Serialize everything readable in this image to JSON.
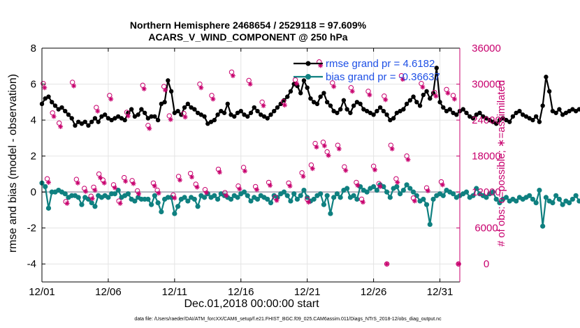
{
  "chart_data": {
    "type": "line",
    "title_line1": "Northern Hemisphere 2468654 / 2529118 = 97.609%",
    "title_line2": "ACARS_V_WIND_COMPONENT @ 250 hPa",
    "xlabel": "Dec.01,2018 00:00:00 start",
    "ylabel_left": "rmse and bias (model - observation)",
    "ylabel_right": "# of obs: o=possible; ∗=assimilated",
    "footer": "data file: /Users/raeder/DAI/ATM_forcXX/CAM6_setup/f.e21.FHIST_BGC.f09_025.CAM6assim.011/Diags_NTrS_2018-12/obs_diag_output.nc",
    "xlim": [
      0,
      31.5
    ],
    "ylim_left": [
      -5,
      8
    ],
    "ylim_right": [
      -3000,
      36000
    ],
    "x_ticks": [
      0,
      5,
      10,
      15,
      20,
      25,
      30
    ],
    "x_tick_labels": [
      "12/01",
      "12/06",
      "12/11",
      "12/16",
      "12/21",
      "12/26",
      "12/31"
    ],
    "y_left_ticks": [
      -4,
      -2,
      0,
      2,
      4,
      6,
      8
    ],
    "y_left_tick_labels": [
      "-4",
      "-2",
      "0",
      "2",
      "4",
      "6",
      "8"
    ],
    "y_right_ticks": [
      0,
      6000,
      12000,
      18000,
      24000,
      30000,
      36000
    ],
    "y_right_tick_labels": [
      "0",
      "6000",
      "12000",
      "18000",
      "24000",
      "30000",
      "36000"
    ],
    "grid": true,
    "legend": [
      {
        "label": "rmse grand pr = 4.6182",
        "color": "#000000"
      },
      {
        "label": "bias grand pr = -0.36637",
        "color": "#0f8080"
      }
    ],
    "series": [
      {
        "name": "rmse",
        "color": "#000000",
        "marker": "asterisk",
        "start": 0,
        "step": 0.25,
        "values": [
          4.9,
          5.2,
          5.3,
          5.0,
          4.8,
          4.6,
          4.7,
          4.5,
          4.3,
          4.1,
          3.7,
          3.9,
          3.8,
          3.9,
          3.7,
          3.9,
          4.1,
          3.9,
          4.2,
          4.3,
          4.1,
          4.0,
          4.1,
          4.2,
          4.1,
          4.0,
          4.4,
          4.6,
          4.2,
          4.3,
          4.6,
          4.4,
          4.1,
          4.2,
          4.2,
          4.0,
          4.9,
          5.0,
          6.2,
          5.6,
          4.4,
          4.5,
          4.3,
          4.7,
          4.9,
          4.7,
          4.6,
          4.4,
          4.3,
          4.2,
          3.8,
          3.9,
          4.0,
          4.3,
          4.5,
          4.4,
          4.9,
          4.3,
          4.2,
          4.4,
          4.5,
          4.3,
          4.2,
          4.4,
          4.7,
          4.5,
          4.3,
          4.2,
          4.1,
          4.3,
          4.5,
          4.7,
          4.9,
          5.1,
          5.3,
          5.6,
          6.0,
          5.9,
          5.5,
          6.2,
          5.8,
          5.2,
          5.0,
          4.9,
          5.3,
          5.5,
          5.0,
          4.8,
          4.5,
          4.4,
          4.6,
          5.1,
          4.6,
          4.4,
          4.8,
          5.0,
          4.9,
          4.6,
          4.5,
          4.4,
          4.3,
          4.5,
          4.7,
          4.5,
          4.3,
          4.0,
          4.1,
          4.4,
          4.5,
          4.6,
          4.9,
          5.1,
          5.3,
          5.0,
          4.8,
          5.4,
          5.6,
          5.2,
          5.5,
          6.9,
          5.0,
          4.7,
          4.5,
          4.6,
          4.4,
          4.3,
          4.5,
          4.6,
          4.4,
          4.2,
          4.1,
          4.3,
          4.4,
          4.2,
          4.1,
          4.0,
          3.9,
          3.8,
          4.0,
          4.1,
          4.0,
          3.9,
          4.2,
          4.4,
          4.5,
          4.3,
          4.2,
          4.1,
          4.0,
          4.2,
          3.9,
          4.8,
          6.4,
          5.6,
          4.5,
          4.4,
          4.6,
          4.3,
          4.4,
          4.5,
          4.6,
          4.5,
          4.6,
          4.4,
          4.3,
          4.2,
          4.1,
          4.5,
          4.6,
          4.7,
          4.8,
          5.0,
          5.1,
          5.2,
          4.6,
          4.7
        ]
      },
      {
        "name": "bias",
        "color": "#0f8080",
        "marker": "dot",
        "start": 0,
        "step": 0.25,
        "values": [
          0.5,
          0.3,
          -0.9,
          0.0,
          0.0,
          0.1,
          0.0,
          -0.1,
          -0.3,
          -0.2,
          -0.2,
          -0.3,
          -0.7,
          -0.3,
          -0.4,
          -0.6,
          -0.8,
          -0.2,
          -0.3,
          -0.2,
          -0.3,
          -0.1,
          -0.1,
          0.1,
          -0.3,
          -0.2,
          -0.1,
          -0.4,
          -0.5,
          -0.3,
          -0.4,
          -0.4,
          -0.4,
          -0.7,
          -0.2,
          -0.6,
          -1.1,
          -0.4,
          -0.3,
          -0.3,
          -1.2,
          -0.8,
          -0.4,
          -0.3,
          -0.5,
          -0.3,
          -0.4,
          -0.8,
          -0.2,
          -0.3,
          -0.1,
          -0.3,
          -0.2,
          -0.4,
          -0.1,
          -0.2,
          -0.3,
          -0.4,
          -0.2,
          -0.3,
          -0.1,
          0.0,
          -0.2,
          -0.5,
          -0.3,
          -0.4,
          -0.2,
          -0.3,
          -0.4,
          -0.6,
          -0.2,
          -0.3,
          -0.1,
          0.0,
          -0.2,
          -0.5,
          -0.1,
          -0.4,
          -0.2,
          0.1,
          -0.3,
          -0.5,
          -0.4,
          -0.2,
          -0.1,
          -0.7,
          -0.2,
          -1.2,
          -0.3,
          -0.1,
          -0.3,
          0.1,
          0.2,
          -0.3,
          -0.2,
          -0.4,
          0.3,
          0.1,
          0.0,
          0.2,
          0.3,
          0.1,
          0.4,
          0.3,
          0.0,
          -0.3,
          0.2,
          0.3,
          -0.1,
          0.1,
          0.4,
          0.2,
          0.0,
          -0.2,
          -0.5,
          -0.4,
          -0.7,
          -1.8,
          -0.4,
          -0.2,
          -0.1,
          -0.2,
          0.1,
          0.0,
          -0.1,
          -0.3,
          -0.2,
          -0.1,
          0.0,
          -0.3,
          -0.2,
          0.2,
          -0.1,
          -0.2,
          -0.3,
          -0.1,
          0.0,
          -0.4,
          -0.6,
          -0.4,
          -0.3,
          -0.5,
          -0.4,
          -0.5,
          -0.3,
          -0.4,
          -0.3,
          -0.2,
          -0.4,
          -0.6,
          0.1,
          -1.9,
          -0.3,
          -0.5,
          -0.6,
          -0.2,
          -0.4,
          -0.7,
          -0.5,
          -0.6,
          -0.4,
          -0.2,
          -0.5,
          -0.6,
          -0.3,
          -0.4,
          -0.5,
          -0.6,
          -0.4,
          -0.3,
          -0.5,
          0.5,
          -0.3,
          -0.5,
          -0.8,
          -0.4,
          -0.3
        ]
      },
      {
        "name": "obs_possible",
        "color": "#c8006e",
        "marker": "circle",
        "axis": "right",
        "points": [
          [
            0.1,
            30100
          ],
          [
            0.4,
            14200
          ],
          [
            0.8,
            25200
          ],
          [
            1.3,
            23500
          ],
          [
            1.8,
            10400
          ],
          [
            2.3,
            30300
          ],
          [
            2.6,
            14100
          ],
          [
            3.2,
            12600
          ],
          [
            3.7,
            11300
          ],
          [
            3.9,
            12800
          ],
          [
            4.1,
            26100
          ],
          [
            4.3,
            15000
          ],
          [
            4.6,
            14000
          ],
          [
            5.1,
            28100
          ],
          [
            5.4,
            13200
          ],
          [
            5.8,
            10500
          ],
          [
            6.2,
            14400
          ],
          [
            6.4,
            25300
          ],
          [
            6.8,
            13900
          ],
          [
            7.2,
            12200
          ],
          [
            7.6,
            29800
          ],
          [
            8.0,
            23100
          ],
          [
            8.4,
            13500
          ],
          [
            8.7,
            12300
          ],
          [
            9.2,
            29600
          ],
          [
            9.6,
            24700
          ],
          [
            9.9,
            11500
          ],
          [
            10.3,
            14600
          ],
          [
            10.7,
            25100
          ],
          [
            11.2,
            15100
          ],
          [
            11.6,
            13300
          ],
          [
            11.9,
            30000
          ],
          [
            12.3,
            12400
          ],
          [
            12.8,
            28100
          ],
          [
            13.3,
            15800
          ],
          [
            13.8,
            11900
          ],
          [
            14.3,
            32000
          ],
          [
            14.8,
            13000
          ],
          [
            15.2,
            16100
          ],
          [
            15.6,
            30600
          ],
          [
            16.1,
            12900
          ],
          [
            16.6,
            27000
          ],
          [
            17.1,
            13600
          ],
          [
            17.6,
            11100
          ],
          [
            18.2,
            27100
          ],
          [
            18.6,
            13500
          ],
          [
            19.1,
            30700
          ],
          [
            19.6,
            15200
          ],
          [
            20.0,
            10800
          ],
          [
            20.3,
            16500
          ],
          [
            20.6,
            20100
          ],
          [
            20.9,
            33700
          ],
          [
            21.2,
            20300
          ],
          [
            21.5,
            18700
          ],
          [
            21.9,
            30200
          ],
          [
            22.3,
            19800
          ],
          [
            22.8,
            16200
          ],
          [
            23.3,
            29400
          ],
          [
            23.7,
            13600
          ],
          [
            24.1,
            10800
          ],
          [
            24.6,
            28800
          ],
          [
            25.0,
            16300
          ],
          [
            25.4,
            13400
          ],
          [
            25.8,
            28000
          ],
          [
            26.3,
            19800
          ],
          [
            26.7,
            14200
          ],
          [
            27.1,
            31400
          ],
          [
            27.5,
            18000
          ],
          [
            28.0,
            11000
          ],
          [
            28.6,
            30100
          ],
          [
            29.0,
            12700
          ],
          [
            29.6,
            28600
          ],
          [
            30.1,
            13700
          ],
          [
            30.5,
            29100
          ],
          [
            31.0,
            28100
          ]
        ]
      },
      {
        "name": "obs_assimilated",
        "color": "#c8006e",
        "marker": "asterisk",
        "axis": "right",
        "points": [
          [
            0.2,
            29400
          ],
          [
            0.5,
            13600
          ],
          [
            0.9,
            24600
          ],
          [
            1.4,
            22900
          ],
          [
            1.9,
            10100
          ],
          [
            2.4,
            29700
          ],
          [
            2.7,
            13500
          ],
          [
            3.3,
            12100
          ],
          [
            3.8,
            10900
          ],
          [
            4.0,
            12300
          ],
          [
            4.2,
            25500
          ],
          [
            4.4,
            14400
          ],
          [
            4.7,
            13500
          ],
          [
            5.2,
            27500
          ],
          [
            5.5,
            12700
          ],
          [
            5.9,
            10100
          ],
          [
            6.3,
            13800
          ],
          [
            6.5,
            24700
          ],
          [
            6.9,
            13400
          ],
          [
            7.3,
            11700
          ],
          [
            7.7,
            29200
          ],
          [
            8.1,
            22600
          ],
          [
            8.5,
            13000
          ],
          [
            8.8,
            11800
          ],
          [
            9.3,
            29000
          ],
          [
            9.7,
            24100
          ],
          [
            10.0,
            11000
          ],
          [
            10.4,
            14000
          ],
          [
            10.8,
            24500
          ],
          [
            11.3,
            14500
          ],
          [
            11.7,
            12800
          ],
          [
            12.0,
            29400
          ],
          [
            12.4,
            11900
          ],
          [
            12.9,
            27500
          ],
          [
            13.4,
            15300
          ],
          [
            13.9,
            11400
          ],
          [
            14.4,
            31400
          ],
          [
            14.9,
            12500
          ],
          [
            15.3,
            15500
          ],
          [
            15.7,
            30000
          ],
          [
            16.2,
            12400
          ],
          [
            16.7,
            26400
          ],
          [
            17.2,
            13100
          ],
          [
            17.7,
            10600
          ],
          [
            18.3,
            26500
          ],
          [
            18.7,
            13000
          ],
          [
            19.2,
            30100
          ],
          [
            19.7,
            14600
          ],
          [
            20.1,
            10300
          ],
          [
            20.4,
            15900
          ],
          [
            20.7,
            19500
          ],
          [
            21.0,
            33100
          ],
          [
            21.3,
            19700
          ],
          [
            21.6,
            18100
          ],
          [
            22.0,
            29600
          ],
          [
            22.4,
            19200
          ],
          [
            22.9,
            15600
          ],
          [
            23.4,
            28800
          ],
          [
            23.8,
            13100
          ],
          [
            24.2,
            10300
          ],
          [
            24.7,
            28200
          ],
          [
            25.1,
            15700
          ],
          [
            25.5,
            12900
          ],
          [
            25.9,
            27400
          ],
          [
            26.4,
            19200
          ],
          [
            26.8,
            13600
          ],
          [
            27.2,
            30800
          ],
          [
            27.6,
            17400
          ],
          [
            28.1,
            10500
          ],
          [
            28.7,
            29500
          ],
          [
            29.1,
            12200
          ],
          [
            29.7,
            28000
          ],
          [
            30.2,
            13200
          ],
          [
            30.6,
            28500
          ],
          [
            31.1,
            27500
          ]
        ]
      }
    ],
    "outlier_markers": [
      [
        26.0,
        0
      ],
      [
        31.4,
        0
      ]
    ]
  }
}
